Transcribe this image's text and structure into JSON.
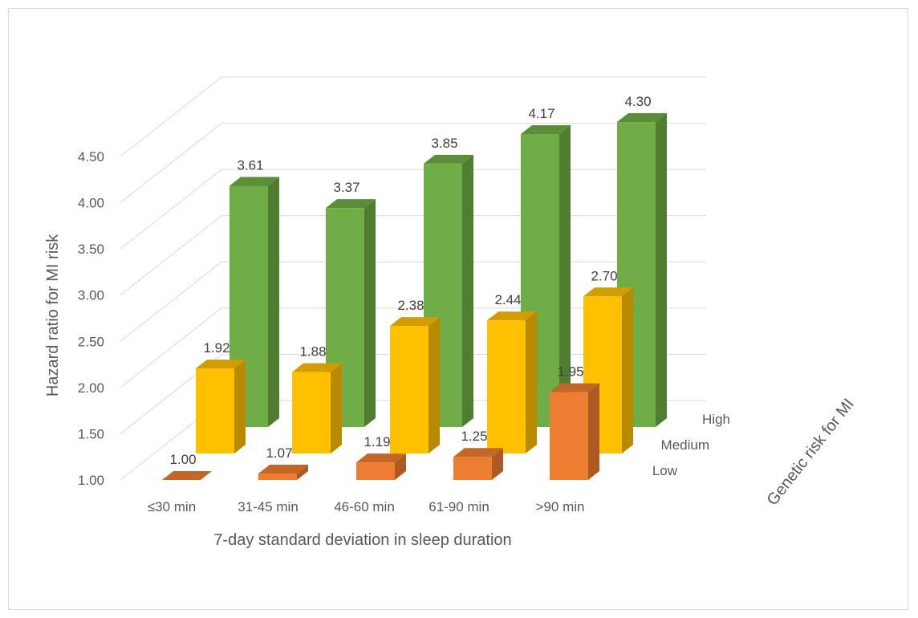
{
  "chart_data": {
    "type": "bar",
    "subtype": "3d-clustered-column",
    "title": "",
    "xlabel": "7-day standard deviation in sleep duration",
    "ylabel": "Hazard ratio for MI risk",
    "zlabel": "Genetic risk for MI",
    "categories": [
      "≤30 min",
      "31-45 min",
      "46-60 min",
      "61-90 min",
      ">90 min"
    ],
    "series": [
      {
        "name": "Low",
        "values": [
          1.0,
          1.07,
          1.19,
          1.25,
          1.95
        ],
        "color": "#ED7D31"
      },
      {
        "name": "Medium",
        "values": [
          1.92,
          1.88,
          2.38,
          2.44,
          2.7
        ],
        "color": "#FFC000"
      },
      {
        "name": "High",
        "values": [
          3.61,
          3.37,
          3.85,
          4.17,
          4.3
        ],
        "color": "#70AD47"
      }
    ],
    "y_ticks": [
      "1.00",
      "1.50",
      "2.00",
      "2.50",
      "3.00",
      "3.50",
      "4.00",
      "4.50"
    ],
    "ylim": [
      1.0,
      4.5
    ],
    "grid": true,
    "data_labels": true
  }
}
